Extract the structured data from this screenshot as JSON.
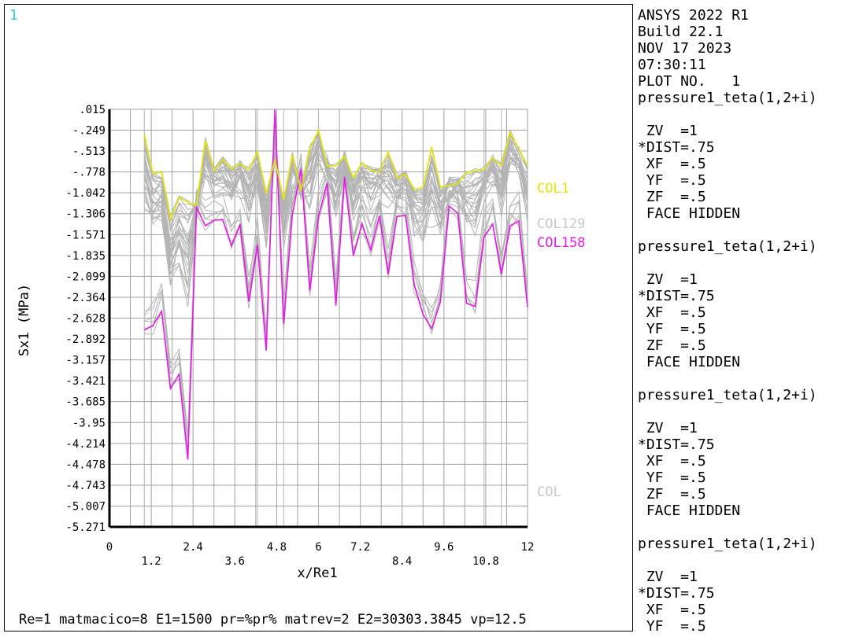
{
  "window_number": "1",
  "side_panel": {
    "lines": [
      "ANSYS 2022 R1",
      "Build 22.1",
      "NOV 17 2023",
      "07:30:11",
      "PLOT NO.   1",
      "pressure1_teta(1,2+i)",
      "",
      " ZV  =1",
      "*DIST=.75",
      " XF  =.5",
      " YF  =.5",
      " ZF  =.5",
      " FACE HIDDEN",
      "",
      "pressure1_teta(1,2+i)",
      "",
      " ZV  =1",
      "*DIST=.75",
      " XF  =.5",
      " YF  =.5",
      " ZF  =.5",
      " FACE HIDDEN",
      "",
      "pressure1_teta(1,2+i)",
      "",
      " ZV  =1",
      "*DIST=.75",
      " XF  =.5",
      " YF  =.5",
      " ZF  =.5",
      " FACE HIDDEN",
      "",
      "pressure1_teta(1,2+i)",
      "",
      " ZV  =1",
      "*DIST=.75",
      " XF  =.5",
      " YF  =.5"
    ]
  },
  "footer": "Re=1 matmacico=8 E1=1500 pr=%pr% matrev=2 E2=30303.3845 vp=12.5",
  "colors": {
    "grid": "#a0a0a0",
    "background_curves": "#b4b4b4",
    "yellow_series": "#e6e600",
    "magenta_series": "#e619e6",
    "window_number": "#33d1d1"
  },
  "chart_data": {
    "type": "line",
    "xlabel": "x/Re1",
    "ylabel": "Sx1   (MPa)",
    "xlim": [
      0,
      12
    ],
    "ylim": [
      -5.271,
      0.015
    ],
    "grid": true,
    "x_ticks_upper": [
      "0",
      "2.4",
      "4.8",
      "6",
      "7.2",
      "9.6",
      "12"
    ],
    "x_ticks_upper_values": [
      0,
      2.4,
      4.8,
      6,
      7.2,
      9.6,
      12
    ],
    "x_ticks_lower": [
      "1.2",
      "3.6",
      "8.4",
      "10.8"
    ],
    "x_ticks_lower_values": [
      1.2,
      3.6,
      8.4,
      10.8
    ],
    "y_ticks": [
      ".015",
      "-.249",
      "-.513",
      "-.778",
      "-1.042",
      "-1.306",
      "-1.571",
      "-1.835",
      "-2.099",
      "-2.364",
      "-2.628",
      "-2.892",
      "-3.157",
      "-3.421",
      "-3.685",
      "-3.95",
      "-4.214",
      "-4.478",
      "-4.743",
      "-5.007",
      "-5.271"
    ],
    "y_tick_values": [
      0.015,
      -0.249,
      -0.513,
      -0.778,
      -1.042,
      -1.306,
      -1.571,
      -1.835,
      -2.099,
      -2.364,
      -2.628,
      -2.892,
      -3.157,
      -3.421,
      -3.685,
      -3.95,
      -4.214,
      -4.478,
      -4.743,
      -5.007,
      -5.271
    ],
    "x": [
      1.0,
      1.25,
      1.5,
      1.75,
      2.0,
      2.25,
      2.5,
      2.75,
      3.0,
      3.25,
      3.5,
      3.75,
      4.0,
      4.25,
      4.5,
      4.75,
      5.0,
      5.25,
      5.5,
      5.75,
      6.0,
      6.25,
      6.5,
      6.75,
      7.0,
      7.25,
      7.5,
      7.75,
      8.0,
      8.25,
      8.5,
      8.75,
      9.0,
      9.25,
      9.5,
      9.75,
      10.0,
      10.25,
      10.5,
      10.75,
      11.0,
      11.25,
      11.5,
      11.75,
      12.0
    ],
    "series": [
      {
        "name": "COL158",
        "color": "#e619e6",
        "values": [
          -2.78,
          -2.72,
          -2.54,
          -3.52,
          -3.34,
          -4.42,
          -1.22,
          -1.46,
          -1.39,
          -1.38,
          -1.71,
          -1.44,
          -2.42,
          -1.7,
          -3.04,
          0.02,
          -2.7,
          -1.32,
          -0.74,
          -2.28,
          -1.34,
          -0.92,
          -2.47,
          -0.84,
          -1.84,
          -1.43,
          -1.77,
          -1.33,
          -2.07,
          -1.34,
          -1.33,
          -2.21,
          -2.58,
          -2.76,
          -2.42,
          -1.21,
          -1.3,
          -2.44,
          -2.48,
          -1.6,
          -1.44,
          -2.07,
          -1.46,
          -1.4,
          -2.49
        ]
      },
      {
        "name": "COL1",
        "color": "#e6e600",
        "values": [
          -0.3,
          -0.8,
          -0.78,
          -1.38,
          -1.1,
          -1.16,
          -1.2,
          -0.38,
          -0.76,
          -0.62,
          -0.74,
          -0.67,
          -0.75,
          -0.52,
          -1.05,
          -0.62,
          -1.13,
          -0.56,
          -1.02,
          -0.48,
          -0.25,
          -0.7,
          -0.7,
          -0.58,
          -0.85,
          -0.66,
          -0.76,
          -0.78,
          -0.52,
          -0.85,
          -0.81,
          -1.0,
          -0.97,
          -0.46,
          -0.97,
          -0.95,
          -0.92,
          -0.79,
          -0.76,
          -0.75,
          -0.6,
          -0.7,
          -0.28,
          -0.48,
          -0.7
        ]
      }
    ],
    "legend": [
      "COL1",
      "COL129",
      "COL158",
      "COL"
    ]
  }
}
